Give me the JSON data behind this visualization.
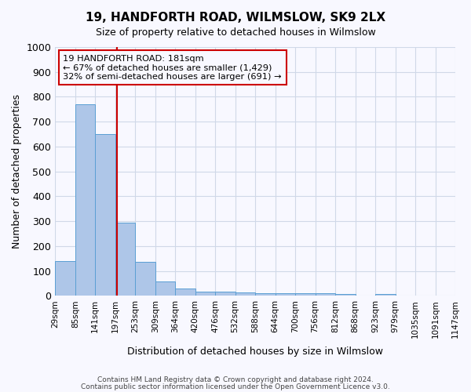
{
  "title": "19, HANDFORTH ROAD, WILMSLOW, SK9 2LX",
  "subtitle": "Size of property relative to detached houses in Wilmslow",
  "xlabel": "Distribution of detached houses by size in Wilmslow",
  "ylabel": "Number of detached properties",
  "bar_color": "#aec6e8",
  "bar_edge_color": "#5a9fd4",
  "grid_color": "#d0d8e8",
  "bin_edges": [
    "29sqm",
    "85sqm",
    "141sqm",
    "197sqm",
    "253sqm",
    "309sqm",
    "364sqm",
    "420sqm",
    "476sqm",
    "532sqm",
    "588sqm",
    "644sqm",
    "700sqm",
    "756sqm",
    "812sqm",
    "868sqm",
    "923sqm",
    "979sqm",
    "1035sqm",
    "1091sqm",
    "1147sqm"
  ],
  "bar_values": [
    141,
    770,
    650,
    295,
    137,
    57,
    30,
    18,
    18,
    15,
    10,
    10,
    10,
    10,
    8,
    0,
    8,
    0,
    0,
    0
  ],
  "ylim": [
    0,
    1000
  ],
  "yticks": [
    0,
    100,
    200,
    300,
    400,
    500,
    600,
    700,
    800,
    900,
    1000
  ],
  "property_line_x": 2.6,
  "property_line_color": "#cc0000",
  "annotation_text": "19 HANDFORTH ROAD: 181sqm\n← 67% of detached houses are smaller (1,429)\n32% of semi-detached houses are larger (691) →",
  "annotation_box_color": "#cc0000",
  "footer_line1": "Contains HM Land Registry data © Crown copyright and database right 2024.",
  "footer_line2": "Contains public sector information licensed under the Open Government Licence v3.0.",
  "bg_color": "#f8f8ff",
  "fig_width": 6.0,
  "fig_height": 5.0
}
